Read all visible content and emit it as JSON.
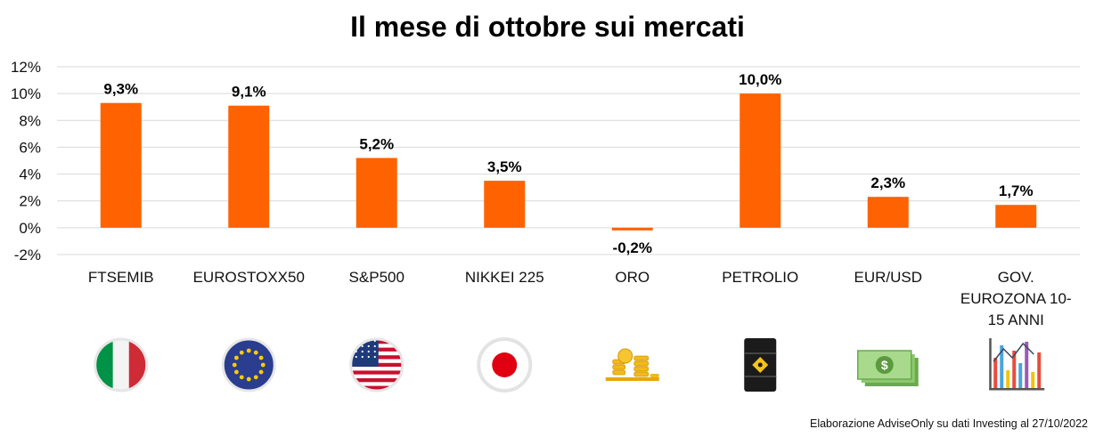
{
  "chart_data": {
    "type": "bar",
    "title": "Il mese di ottobre sui mercati",
    "categories": [
      "FTSEMIB",
      "EUROSTOXX50",
      "S&P500",
      "NIKKEI 225",
      "ORO",
      "PETROLIO",
      "EUR/USD",
      "GOV. EUROZONA 10-15 ANNI"
    ],
    "category_lines": [
      [
        "FTSEMIB"
      ],
      [
        "EUROSTOXX50"
      ],
      [
        "S&P500"
      ],
      [
        "NIKKEI 225"
      ],
      [
        "ORO"
      ],
      [
        "PETROLIO"
      ],
      [
        "EUR/USD"
      ],
      [
        "GOV.",
        "EUROZONA 10-",
        "15 ANNI"
      ]
    ],
    "values": [
      9.3,
      9.1,
      5.2,
      3.5,
      -0.2,
      10.0,
      2.3,
      1.7
    ],
    "data_labels": [
      "9,3%",
      "9,1%",
      "5,2%",
      "3,5%",
      "-0,2%",
      "10,0%",
      "2,3%",
      "1,7%"
    ],
    "ylim": [
      -2,
      12
    ],
    "yticks": [
      12,
      10,
      8,
      6,
      4,
      2,
      0,
      -2
    ],
    "ytick_labels": [
      "12%",
      "10%",
      "8%",
      "6%",
      "4%",
      "2%",
      "0%",
      "-2%"
    ],
    "grid": true,
    "bar_color": "#ff6200",
    "xlabel": "",
    "ylabel": ""
  },
  "icons": [
    "italy-flag-icon",
    "eu-flag-icon",
    "usa-flag-icon",
    "japan-flag-icon",
    "gold-coins-icon",
    "oil-barrel-icon",
    "dollar-banknotes-icon",
    "bar-chart-icon"
  ],
  "source_note": "Elaborazione AdviseOnly su dati Investing al 27/10/2022"
}
